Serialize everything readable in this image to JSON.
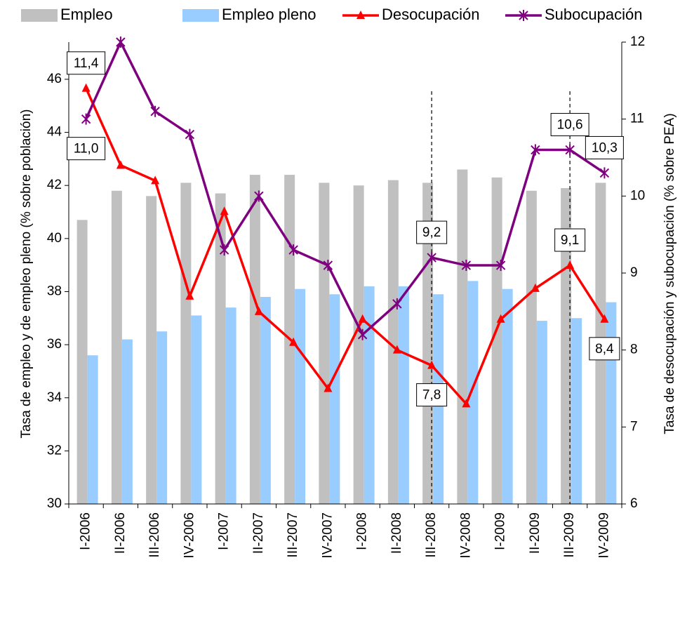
{
  "chart_data": {
    "type": "bar_line",
    "categories": [
      "I-2006",
      "II-2006",
      "III-2006",
      "IV-2006",
      "I-2007",
      "II-2007",
      "III-2007",
      "IV-2007",
      "I-2008",
      "II-2008",
      "III-2008",
      "IV-2008",
      "I-2009",
      "II-2009",
      "III-2009",
      "IV-2009"
    ],
    "ylabel": "Tasa de empleo y de empleo pleno (% sobre población)",
    "y2label": "Tasa de desocupación y subocupación (% sobre PEA)",
    "ylim": [
      30,
      47.4
    ],
    "yticks": [
      30,
      32,
      34,
      36,
      38,
      40,
      42,
      44,
      46
    ],
    "y2lim": [
      6,
      12
    ],
    "y2ticks": [
      6,
      7,
      8,
      9,
      10,
      11,
      12
    ],
    "series": [
      {
        "name": "Empleo",
        "type": "bar",
        "color": "#c0c0c0",
        "values": [
          40.7,
          41.8,
          41.6,
          42.1,
          41.7,
          42.4,
          42.4,
          42.1,
          42.0,
          42.2,
          42.1,
          42.6,
          42.3,
          41.8,
          41.9,
          42.1
        ]
      },
      {
        "name": "Empleo pleno",
        "type": "bar",
        "color": "#99ccff",
        "values": [
          35.6,
          36.2,
          36.5,
          37.1,
          37.4,
          37.8,
          38.1,
          37.9,
          38.2,
          38.2,
          37.9,
          38.4,
          38.1,
          36.9,
          37.0,
          37.6
        ]
      },
      {
        "name": "Desocupación",
        "type": "line",
        "axis": "y2",
        "marker": "triangle",
        "color": "#ff0000",
        "values": [
          11.4,
          10.4,
          10.2,
          8.7,
          9.8,
          8.5,
          8.1,
          7.5,
          8.4,
          8.0,
          7.8,
          7.3,
          8.4,
          8.8,
          9.1,
          8.4
        ],
        "value_labels": [
          "11,4",
          null,
          null,
          null,
          null,
          null,
          null,
          null,
          null,
          null,
          "7,8",
          null,
          null,
          null,
          "9,1",
          "8,4"
        ]
      },
      {
        "name": "Subocupación",
        "type": "line",
        "axis": "y2",
        "marker": "star",
        "color": "#7f007f",
        "values": [
          11.0,
          12.0,
          11.1,
          10.8,
          9.3,
          10.0,
          9.3,
          9.1,
          8.2,
          8.6,
          9.2,
          9.1,
          9.1,
          10.6,
          10.6,
          10.3
        ],
        "value_labels": [
          "11,0",
          null,
          null,
          null,
          null,
          null,
          null,
          null,
          null,
          null,
          "9,2",
          null,
          null,
          null,
          "10,6",
          "10,3"
        ]
      }
    ]
  }
}
